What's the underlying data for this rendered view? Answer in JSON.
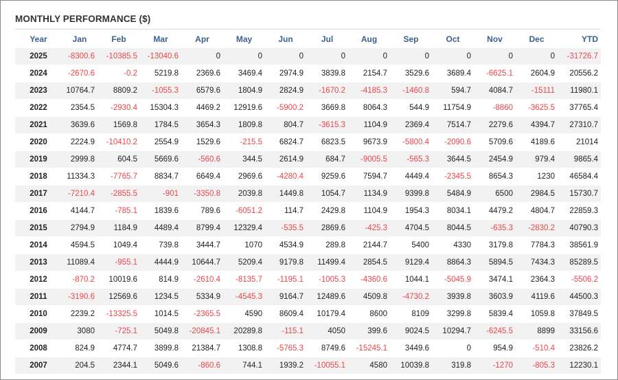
{
  "title": "MONTHLY PERFORMANCE ($)",
  "columns": [
    "Year",
    "Jan",
    "Feb",
    "Mar",
    "Apr",
    "May",
    "Jun",
    "Jul",
    "Aug",
    "Sep",
    "Oct",
    "Nov",
    "Dec",
    "YTD"
  ],
  "rows": [
    [
      "2025",
      "-8300.6",
      "-10385.5",
      "-13040.6",
      "0",
      "0",
      "0",
      "0",
      "0",
      "0",
      "0",
      "0",
      "0",
      "-31726.7"
    ],
    [
      "2024",
      "-2670.6",
      "-0.2",
      "5219.8",
      "2369.6",
      "3469.4",
      "2974.9",
      "3839.8",
      "2154.7",
      "3529.6",
      "3689.4",
      "-6625.1",
      "2604.9",
      "20556.2"
    ],
    [
      "2023",
      "10764.7",
      "8809.2",
      "-1055.3",
      "6579.6",
      "1804.9",
      "2824.9",
      "-1670.2",
      "-4185.3",
      "-1460.8",
      "594.7",
      "4084.7",
      "-15111",
      "11980.1"
    ],
    [
      "2022",
      "2354.5",
      "-2930.4",
      "15304.3",
      "4469.2",
      "12919.6",
      "-5900.2",
      "3669.8",
      "8064.3",
      "544.9",
      "11754.9",
      "-8860",
      "-3625.5",
      "37765.4"
    ],
    [
      "2021",
      "3639.6",
      "1569.8",
      "1784.5",
      "3654.3",
      "1809.8",
      "804.7",
      "-3615.3",
      "1104.9",
      "2369.4",
      "7514.7",
      "2279.6",
      "4394.7",
      "27310.7"
    ],
    [
      "2020",
      "2224.9",
      "-10410.2",
      "2554.9",
      "1529.6",
      "-215.5",
      "6824.7",
      "6823.5",
      "9673.9",
      "-5800.4",
      "-2090.6",
      "5709.6",
      "4189.6",
      "21014"
    ],
    [
      "2019",
      "2999.8",
      "604.5",
      "5669.6",
      "-560.6",
      "344.5",
      "2614.9",
      "684.7",
      "-9005.5",
      "-565.3",
      "3644.5",
      "2454.9",
      "979.4",
      "9865.4"
    ],
    [
      "2018",
      "11334.3",
      "-7765.7",
      "8834.7",
      "6649.4",
      "2969.6",
      "-4280.4",
      "9259.6",
      "7594.7",
      "4449.4",
      "-2345.5",
      "8654.3",
      "1230",
      "46584.4"
    ],
    [
      "2017",
      "-7210.4",
      "-2855.5",
      "-901",
      "-3350.8",
      "2039.8",
      "1449.8",
      "1054.7",
      "1134.9",
      "9399.8",
      "5484.9",
      "6500",
      "2984.5",
      "15730.7"
    ],
    [
      "2016",
      "4144.7",
      "-785.1",
      "1839.6",
      "789.6",
      "-6051.2",
      "114.7",
      "2429.8",
      "1104.9",
      "1954.3",
      "8034.1",
      "4479.2",
      "4804.7",
      "22859.3"
    ],
    [
      "2015",
      "2794.9",
      "1184.9",
      "4489.4",
      "8799.4",
      "12329.4",
      "-535.5",
      "2869.6",
      "-425.3",
      "4704.5",
      "8044.5",
      "-635.3",
      "-2830.2",
      "40790.3"
    ],
    [
      "2014",
      "4594.5",
      "1049.4",
      "739.8",
      "3444.7",
      "1070",
      "4534.9",
      "289.8",
      "2144.7",
      "5400",
      "4330",
      "3179.8",
      "7784.3",
      "38561.9"
    ],
    [
      "2013",
      "11089.4",
      "-955.1",
      "4444.9",
      "10644.7",
      "5209.4",
      "9179.8",
      "11499.4",
      "2854.5",
      "9129.4",
      "8864.3",
      "5894.5",
      "7434.3",
      "85289.5"
    ],
    [
      "2012",
      "-870.2",
      "10019.6",
      "814.9",
      "-2610.4",
      "-8135.7",
      "-1195.1",
      "-1005.3",
      "-4360.6",
      "1044.1",
      "-5045.9",
      "3474.1",
      "2364.3",
      "-5506.2"
    ],
    [
      "2011",
      "-3190.6",
      "12569.6",
      "1234.5",
      "5334.9",
      "-4545.3",
      "9164.7",
      "12489.6",
      "4509.8",
      "-4730.2",
      "3939.8",
      "3603.9",
      "4119.6",
      "44500.3"
    ],
    [
      "2010",
      "2239.2",
      "-13325.5",
      "1014.5",
      "-2365.5",
      "4590",
      "8609.4",
      "10179.4",
      "8600",
      "8109",
      "3299.8",
      "5839.4",
      "1059.8",
      "37849.5"
    ],
    [
      "2009",
      "3080",
      "-725.1",
      "5049.8",
      "-20845.1",
      "20289.8",
      "-115.1",
      "4050",
      "399.6",
      "9024.5",
      "10294.7",
      "-6245.5",
      "8899",
      "33156.6"
    ],
    [
      "2008",
      "824.9",
      "4774.7",
      "3899.8",
      "21384.7",
      "1308.8",
      "-5765.3",
      "8749.6",
      "-15245.1",
      "3449.6",
      "0",
      "954.9",
      "-510.4",
      "23826.2"
    ],
    [
      "2007",
      "204.5",
      "2344.1",
      "5049.6",
      "-860.6",
      "744.1",
      "1939.2",
      "-10055.1",
      "4580",
      "10039.8",
      "319.8",
      "-1270",
      "-805.3",
      "12230.1"
    ]
  ],
  "colors": {
    "negative": "#e8464a",
    "header": "#3b5f8e",
    "stripe": "#f2f2f2"
  }
}
